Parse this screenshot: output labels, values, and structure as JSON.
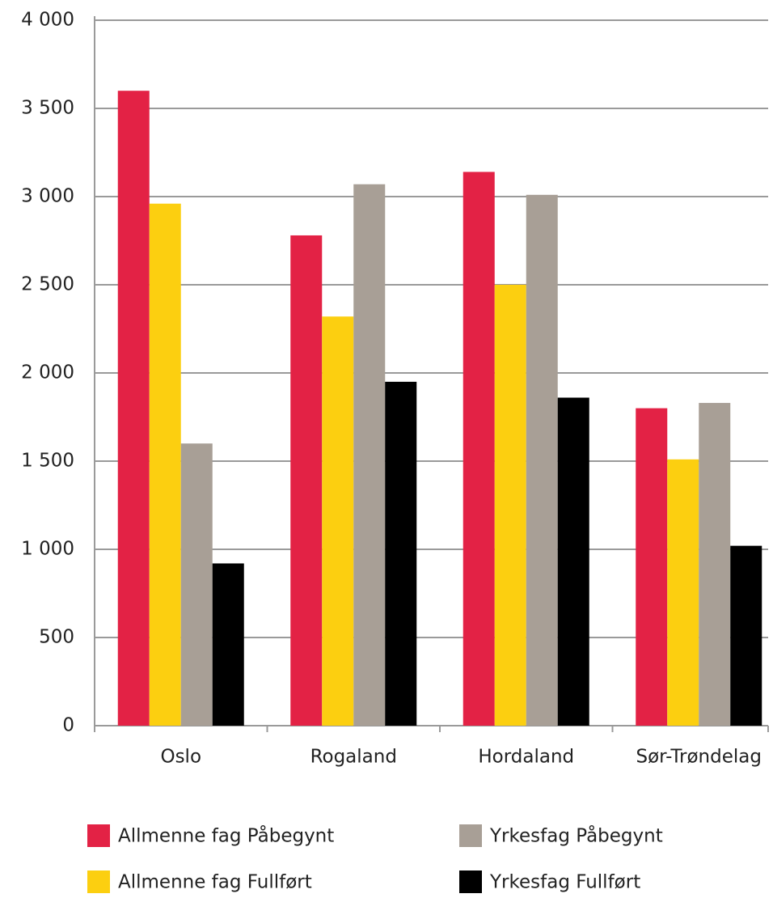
{
  "chart_data": {
    "type": "bar",
    "categories": [
      "Oslo",
      "Rogaland",
      "Hordaland",
      "Sør-Trøndelag"
    ],
    "series": [
      {
        "name": "Allmenne fag Påbegynt",
        "color": "#e32245",
        "values": [
          3600,
          2780,
          3140,
          1800
        ]
      },
      {
        "name": "Allmenne fag Fullført",
        "color": "#fccf10",
        "values": [
          2960,
          2320,
          2500,
          1510
        ]
      },
      {
        "name": "Yrkesfag Påbegynt",
        "color": "#a89f96",
        "values": [
          1600,
          3070,
          3010,
          1830
        ]
      },
      {
        "name": "Yrkesfag Fullført",
        "color": "#000000",
        "values": [
          920,
          1950,
          1860,
          1020
        ]
      }
    ],
    "ylim": [
      0,
      4000
    ],
    "yticks": [
      0,
      500,
      {
        "value": 1000,
        "label": "1 000"
      },
      {
        "value": 1500,
        "label": "1 500"
      },
      {
        "value": 2000,
        "label": "2 000"
      },
      {
        "value": 2500,
        "label": "2 500"
      },
      {
        "value": 3000,
        "label": "3 000"
      },
      {
        "value": 3500,
        "label": "3 500"
      },
      {
        "value": 4000,
        "label": "4 000"
      }
    ],
    "grid": true
  }
}
